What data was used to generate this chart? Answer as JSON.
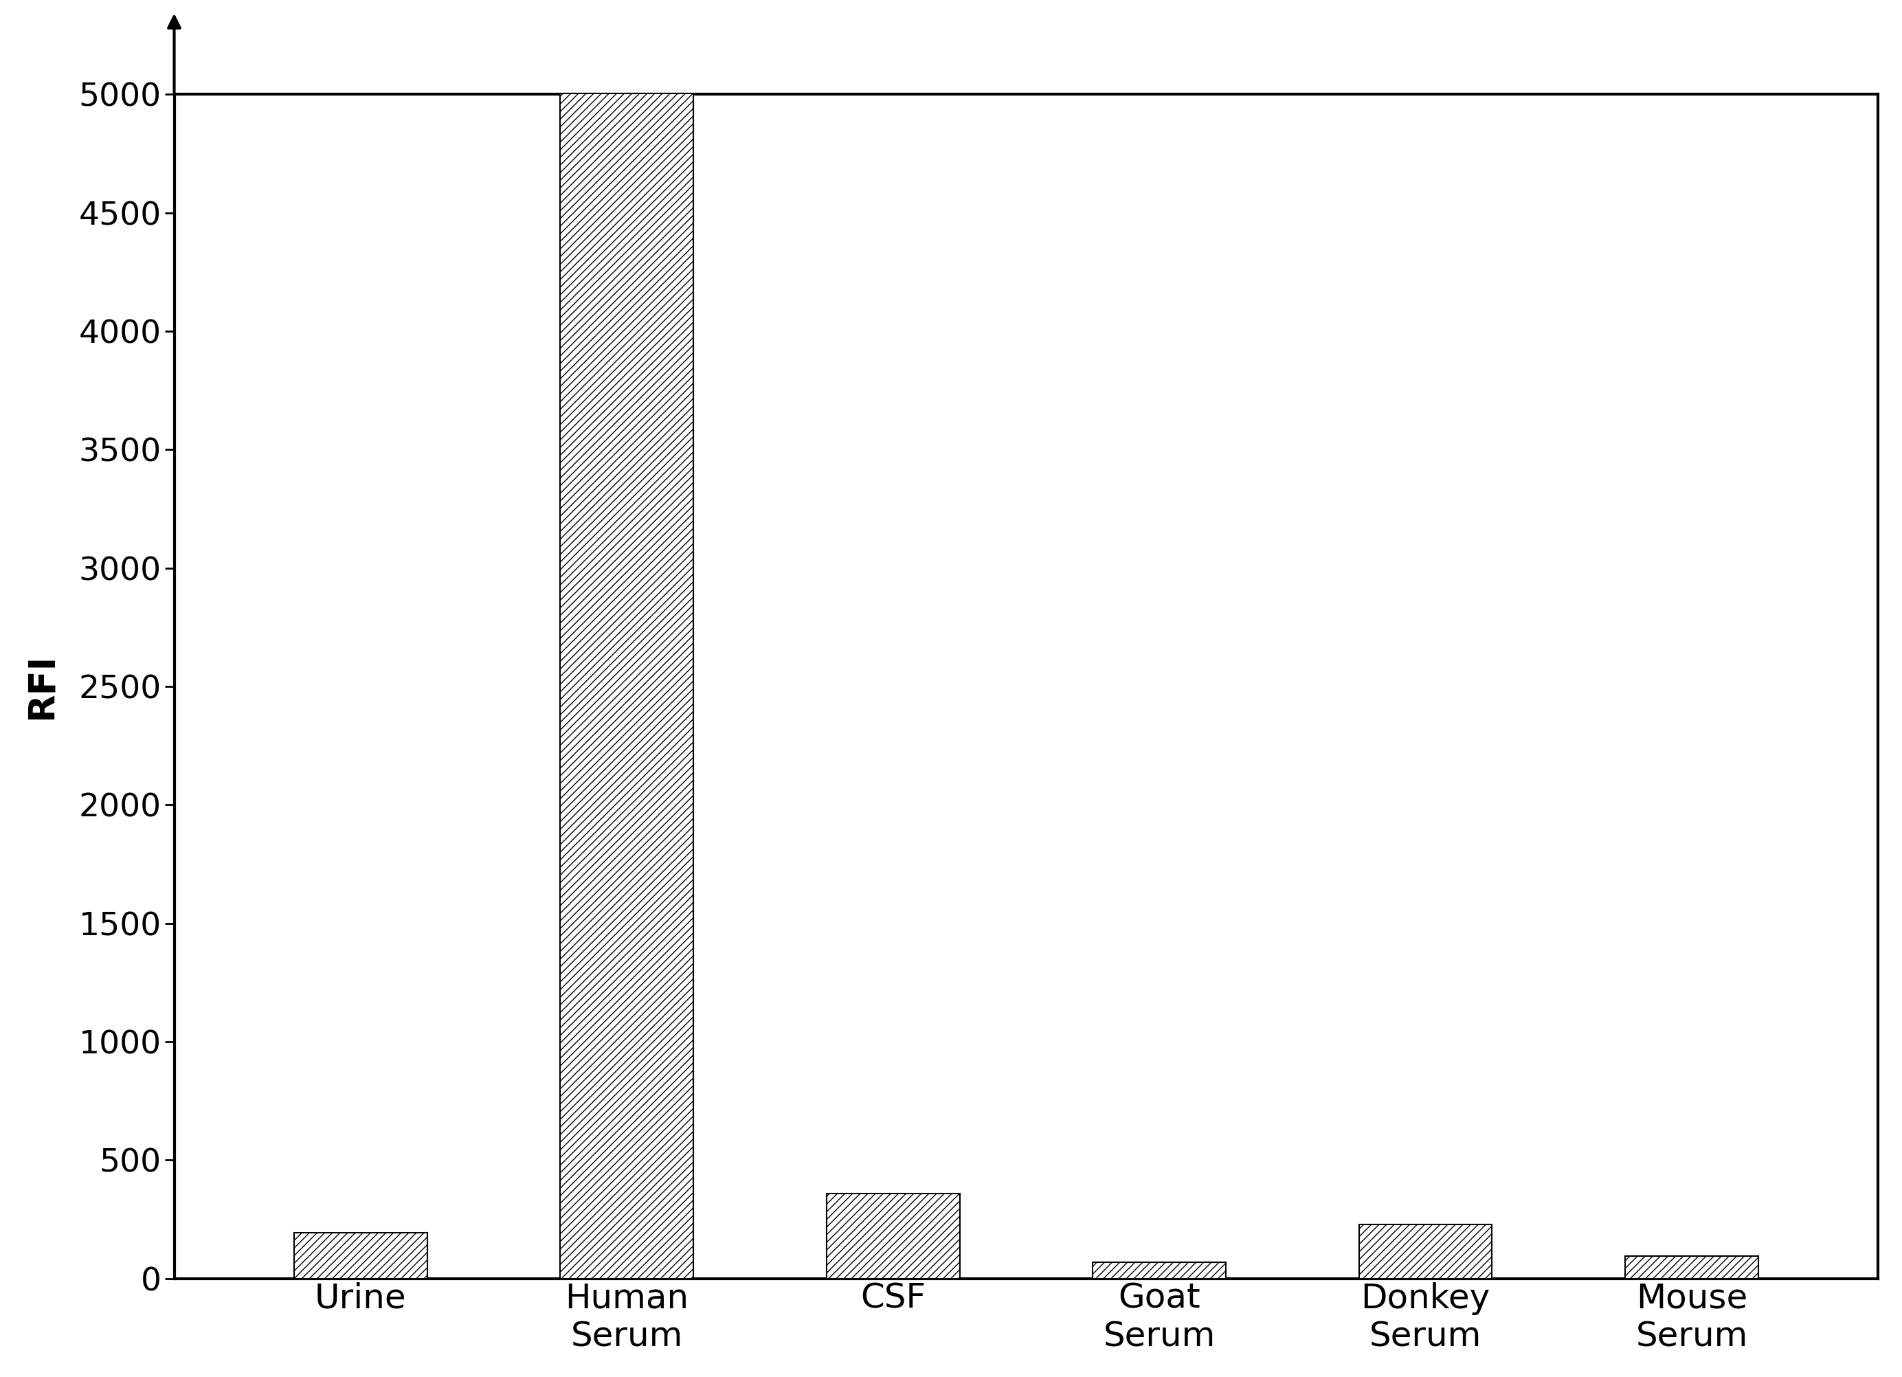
{
  "categories": [
    "Urine",
    "Human\nSerum",
    "CSF",
    "Goat\nSerum",
    "Donkey\nSerum",
    "Mouse\nSerum"
  ],
  "values": [
    195,
    5050,
    360,
    70,
    230,
    95
  ],
  "ylabel": "RFI",
  "ylim": [
    0,
    5000
  ],
  "yticks": [
    0,
    500,
    1000,
    1500,
    2000,
    2500,
    3000,
    3500,
    4000,
    4500,
    5000
  ],
  "bar_width": 0.5,
  "hatch_pattern": "///",
  "bar_facecolor": "white",
  "bar_edgecolor": "black",
  "background_color": "white",
  "axis_linewidth": 3.0,
  "ylabel_fontsize": 38,
  "tick_fontsize": 34,
  "xlabel_fontsize": 36,
  "bar_linewidth": 1.5
}
